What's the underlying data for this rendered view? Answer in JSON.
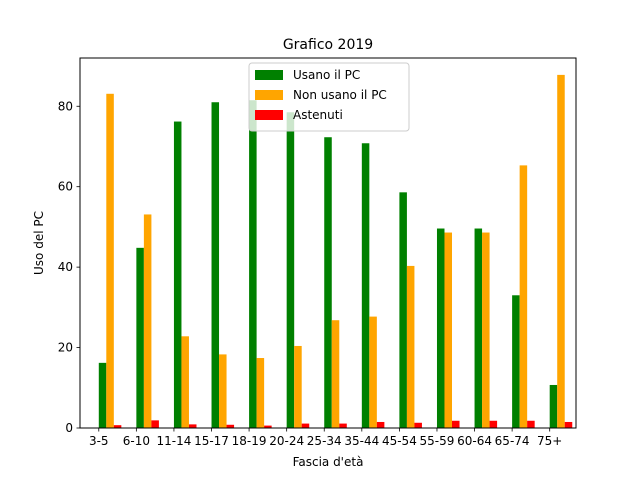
{
  "chart_data": {
    "type": "bar",
    "title": "Grafico 2019",
    "xlabel": "Fascia d'età",
    "ylabel": "Uso del PC",
    "categories": [
      "3-5",
      "6-10",
      "11-14",
      "15-17",
      "18-19",
      "20-24",
      "25-34",
      "35-44",
      "45-54",
      "55-59",
      "60-64",
      "65-74",
      "75+"
    ],
    "ylim": [
      0,
      92
    ],
    "yticks": [
      0,
      20,
      40,
      60,
      80
    ],
    "grid": false,
    "legend_position": "top-center",
    "series": [
      {
        "name": "Usano il PC",
        "color": "#008000",
        "values": [
          16.2,
          44.8,
          76.2,
          81.0,
          81.5,
          78.5,
          72.3,
          70.8,
          58.6,
          49.6,
          49.6,
          33.0,
          10.7
        ]
      },
      {
        "name": "Non usano il PC",
        "color": "#ffa500",
        "values": [
          83.1,
          53.1,
          22.8,
          18.3,
          17.4,
          20.4,
          26.8,
          27.7,
          40.3,
          48.6,
          48.6,
          65.3,
          87.8
        ]
      },
      {
        "name": "Astenuti",
        "color": "#ff0000",
        "values": [
          0.7,
          1.9,
          0.9,
          0.8,
          0.6,
          1.1,
          1.1,
          1.5,
          1.3,
          1.8,
          1.8,
          1.8,
          1.5
        ]
      }
    ]
  }
}
